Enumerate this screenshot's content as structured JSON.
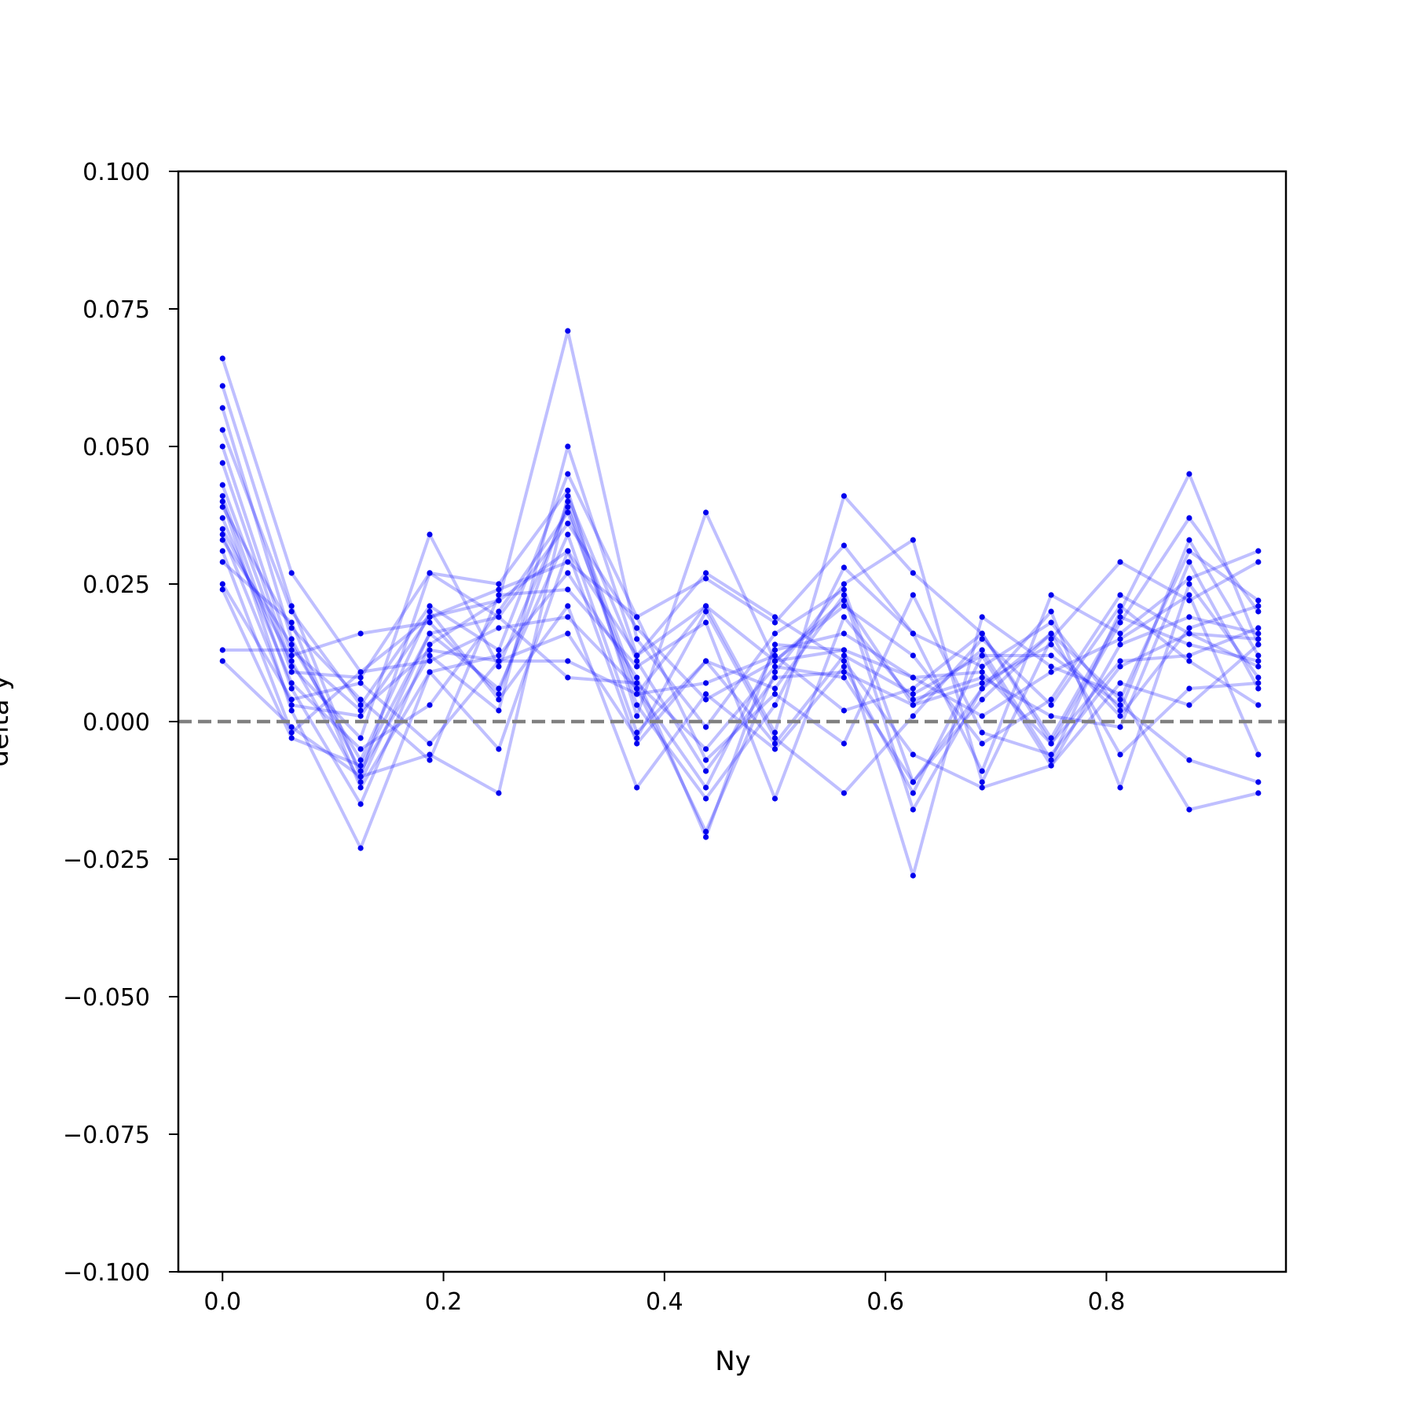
{
  "chart_data": {
    "type": "line",
    "title": "",
    "xlabel": "Ny",
    "ylabel": "delta y",
    "xlim": [
      -0.04,
      0.9625
    ],
    "ylim": [
      -0.1,
      0.1
    ],
    "x_ticks": [
      0.0,
      0.2,
      0.4,
      0.6,
      0.8
    ],
    "x_tick_labels": [
      "0.0",
      "0.2",
      "0.4",
      "0.6",
      "0.8"
    ],
    "y_ticks": [
      0.1,
      0.075,
      0.05,
      0.025,
      0.0,
      -0.025,
      -0.05,
      -0.075,
      -0.1
    ],
    "y_tick_labels": [
      "0.100",
      "0.075",
      "0.050",
      "0.025",
      "0.000",
      "−0.025",
      "−0.050",
      "−0.075",
      "−0.100"
    ],
    "grid": false,
    "legend": "none",
    "reference_line": {
      "y": 0.0,
      "style": "dashed",
      "color": "#808080"
    },
    "line_color": "#0000ff",
    "marker_color": "#0000ee",
    "x": [
      0.0,
      0.0625,
      0.125,
      0.1875,
      0.25,
      0.3125,
      0.375,
      0.4375,
      0.5,
      0.5625,
      0.625,
      0.6875,
      0.75,
      0.8125,
      0.875,
      0.9375
    ],
    "series": [
      {
        "values": [
          0.066,
          0.027,
          0.009,
          0.019,
          0.022,
          0.071,
          0.015,
          -0.001,
          0.016,
          0.024,
          -0.011,
          0.006,
          0.016,
          0.004,
          0.031,
          0.022
        ]
      },
      {
        "values": [
          0.061,
          0.021,
          -0.01,
          0.027,
          0.025,
          0.042,
          0.001,
          0.038,
          0.011,
          0.022,
          0.003,
          0.013,
          -0.007,
          0.02,
          0.045,
          0.014
        ]
      },
      {
        "values": [
          0.057,
          0.015,
          -0.009,
          0.012,
          0.002,
          0.05,
          0.012,
          0.021,
          -0.002,
          0.041,
          0.027,
          0.016,
          -0.004,
          0.018,
          0.037,
          0.02
        ]
      },
      {
        "values": [
          0.053,
          0.02,
          0.003,
          0.021,
          0.013,
          0.045,
          0.019,
          0.026,
          0.018,
          0.032,
          0.016,
          -0.009,
          0.023,
          0.016,
          0.026,
          0.031
        ]
      },
      {
        "values": [
          0.05,
          0.012,
          0.016,
          0.018,
          0.005,
          0.04,
          0.006,
          -0.02,
          0.009,
          0.025,
          0.033,
          -0.011,
          0.015,
          0.029,
          0.022,
          0.029
        ]
      },
      {
        "values": [
          0.047,
          0.01,
          -0.003,
          0.034,
          0.01,
          0.039,
          0.003,
          -0.014,
          0.003,
          0.028,
          0.016,
          0.01,
          0.018,
          0.002,
          0.033,
          0.012
        ]
      },
      {
        "values": [
          0.043,
          0.009,
          0.008,
          0.027,
          0.019,
          0.036,
          0.017,
          0.004,
          0.011,
          0.021,
          0.012,
          -0.004,
          0.004,
          0.023,
          0.016,
          0.01
        ]
      },
      {
        "values": [
          0.041,
          0.006,
          -0.015,
          0.014,
          0.022,
          0.031,
          -0.004,
          0.011,
          -0.004,
          0.012,
          0.005,
          0.012,
          -0.008,
          0.014,
          0.019,
          0.016
        ]
      },
      {
        "values": [
          0.04,
          0.002,
          -0.023,
          0.009,
          0.012,
          0.027,
          0.008,
          -0.021,
          0.014,
          0.013,
          -0.028,
          0.019,
          0.01,
          0.005,
          -0.016,
          -0.013
        ]
      },
      {
        "values": [
          0.039,
          0.017,
          0.004,
          -0.007,
          0.023,
          0.024,
          0.01,
          0.018,
          -0.014,
          0.019,
          0.004,
          0.008,
          0.001,
          -0.001,
          0.029,
          0.006
        ]
      },
      {
        "values": [
          0.037,
          0.007,
          -0.005,
          0.003,
          0.02,
          0.038,
          0.005,
          0.007,
          0.012,
          0.002,
          0.006,
          0.016,
          -0.003,
          0.019,
          0.014,
          0.011
        ]
      },
      {
        "values": [
          0.035,
          0.011,
          -0.011,
          0.016,
          0.006,
          0.034,
          -0.002,
          0.011,
          0.006,
          0.023,
          -0.016,
          0.006,
          0.02,
          -0.012,
          0.025,
          0.008
        ]
      },
      {
        "values": [
          0.034,
          0.003,
          0.001,
          0.019,
          0.024,
          0.029,
          0.019,
          -0.007,
          0.005,
          -0.004,
          0.023,
          -0.002,
          -0.006,
          0.01,
          0.016,
          0.015
        ]
      },
      {
        "values": [
          0.033,
          0.014,
          -0.007,
          0.02,
          0.004,
          0.021,
          -0.012,
          0.005,
          -0.005,
          0.01,
          -0.013,
          0.012,
          0.012,
          0.003,
          -0.007,
          -0.011
        ]
      },
      {
        "values": [
          0.031,
          -0.002,
          0.009,
          0.011,
          0.017,
          0.019,
          0.006,
          -0.012,
          0.013,
          0.016,
          0.008,
          0.001,
          0.009,
          0.015,
          0.023,
          -0.006
        ]
      },
      {
        "values": [
          0.029,
          0.018,
          -0.012,
          0.009,
          -0.005,
          0.031,
          0.012,
          0.027,
          0.019,
          0.011,
          -0.006,
          -0.012,
          -0.008,
          0.007,
          0.003,
          0.014
        ]
      },
      {
        "values": [
          0.025,
          0.004,
          0.007,
          -0.004,
          0.011,
          0.016,
          -0.003,
          0.02,
          -0.003,
          -0.013,
          0.001,
          0.015,
          0.003,
          0.021,
          0.011,
          0.003
        ]
      },
      {
        "values": [
          0.024,
          -0.003,
          -0.008,
          0.016,
          0.019,
          0.008,
          0.007,
          -0.005,
          0.01,
          0.008,
          -0.011,
          0.004,
          0.016,
          -0.006,
          0.006,
          0.007
        ]
      },
      {
        "values": [
          0.013,
          0.013,
          0.002,
          0.013,
          0.011,
          0.011,
          0.005,
          0.021,
          0.011,
          0.013,
          0.008,
          0.009,
          -0.004,
          0.011,
          0.012,
          0.017
        ]
      },
      {
        "values": [
          0.011,
          -0.001,
          -0.01,
          -0.006,
          -0.013,
          0.041,
          0.011,
          -0.009,
          0.008,
          0.009,
          0.003,
          0.007,
          0.014,
          0.001,
          0.017,
          0.021
        ]
      }
    ]
  }
}
